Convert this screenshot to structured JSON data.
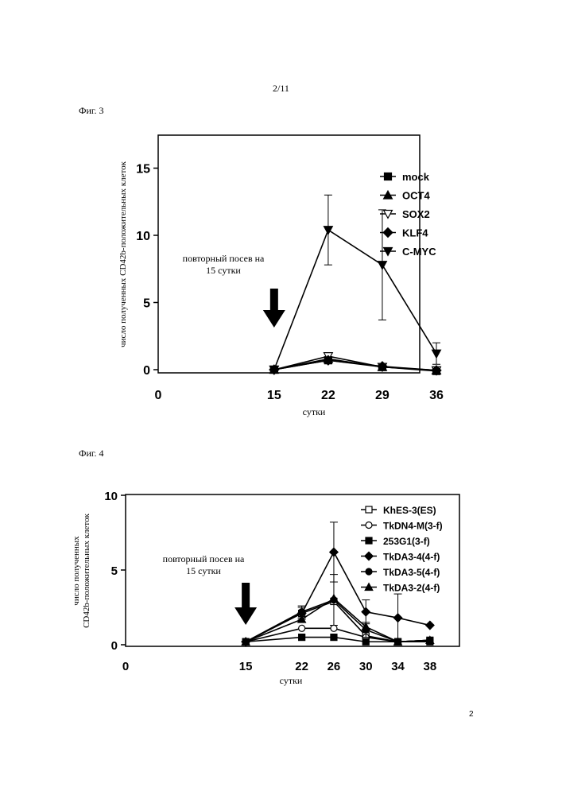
{
  "header": {
    "page_number": "2/11"
  },
  "footer": {
    "page_number": "2"
  },
  "figures": [
    {
      "label": "Фиг. 3"
    },
    {
      "label": "Фиг. 4"
    }
  ],
  "chart_data": [
    {
      "type": "line",
      "xlabel": "сутки",
      "ylabel": "число полученных CD42b-положительных клеток",
      "x_ticks": [
        "0",
        "15",
        "22",
        "29",
        "36"
      ],
      "y_ticks": [
        "0",
        "5",
        "10",
        "15"
      ],
      "xlim": [
        0,
        36
      ],
      "ylim": [
        0,
        20
      ],
      "legend_position": "top-right",
      "annotation": {
        "line1": "повторный посев на",
        "line2": "15 сутки",
        "arrow_at_x": 15
      },
      "x": [
        15,
        22,
        29,
        36
      ],
      "series": [
        {
          "name": "mock",
          "marker": "square",
          "values": [
            0,
            0.7,
            0.2,
            -0.1
          ]
        },
        {
          "name": "OCT4",
          "marker": "triangle-up",
          "values": [
            0,
            0.8,
            0.2,
            -0.05
          ]
        },
        {
          "name": "SOX2",
          "marker": "triangle-down-open",
          "values": [
            0,
            1.0,
            0.2,
            -0.05
          ]
        },
        {
          "name": "KLF4",
          "marker": "diamond",
          "values": [
            0,
            0.7,
            0.25,
            -0.05
          ]
        },
        {
          "name": "C-MYC",
          "marker": "triangle-down",
          "values": [
            0,
            10.4,
            7.8,
            1.2
          ],
          "errors": [
            0,
            2.6,
            4.1,
            0.8
          ]
        }
      ]
    },
    {
      "type": "line",
      "xlabel": "сутки",
      "ylabel": "число полученных CD42b-положительных клеток",
      "x_ticks": [
        "0",
        "15",
        "22",
        "26",
        "30",
        "34",
        "38"
      ],
      "y_ticks": [
        "0",
        "5",
        "10"
      ],
      "xlim": [
        0,
        40
      ],
      "ylim": [
        0,
        10
      ],
      "legend_position": "top-right",
      "annotation": {
        "line1": "повторный посев на",
        "line2": "15 сутки",
        "arrow_at_x": 15
      },
      "x": [
        15,
        22,
        26,
        30,
        34,
        38
      ],
      "series": [
        {
          "name": "KhES-3(ES)",
          "marker": "square-open",
          "values": [
            0.2,
            2.1,
            2.9,
            0.6,
            0.2,
            0.3
          ]
        },
        {
          "name": "TkDN4-M(3-f)",
          "marker": "circle-open",
          "values": [
            0.2,
            1.1,
            1.1,
            0.5,
            0.2,
            0.3
          ]
        },
        {
          "name": "253G1(3-f)",
          "marker": "square",
          "values": [
            0.2,
            0.5,
            0.5,
            0.2,
            0.2,
            0.2
          ]
        },
        {
          "name": "TkDA3-4(4-f)",
          "marker": "diamond",
          "values": [
            0.2,
            2.1,
            6.2,
            2.2,
            1.8,
            1.3
          ],
          "errors": [
            0,
            0.4,
            2.0,
            0.8,
            1.6,
            0
          ]
        },
        {
          "name": "TkDA3-5(4-f)",
          "marker": "circle",
          "values": [
            0.2,
            2.2,
            3.0,
            1.0,
            0.2,
            0.3
          ],
          "errors": [
            0,
            0.4,
            1.7,
            0.5,
            0,
            0
          ]
        },
        {
          "name": "TkDA3-2(4-f)",
          "marker": "triangle-up",
          "values": [
            0.2,
            1.7,
            3.1,
            1.2,
            0.2,
            0.3
          ]
        }
      ]
    }
  ]
}
